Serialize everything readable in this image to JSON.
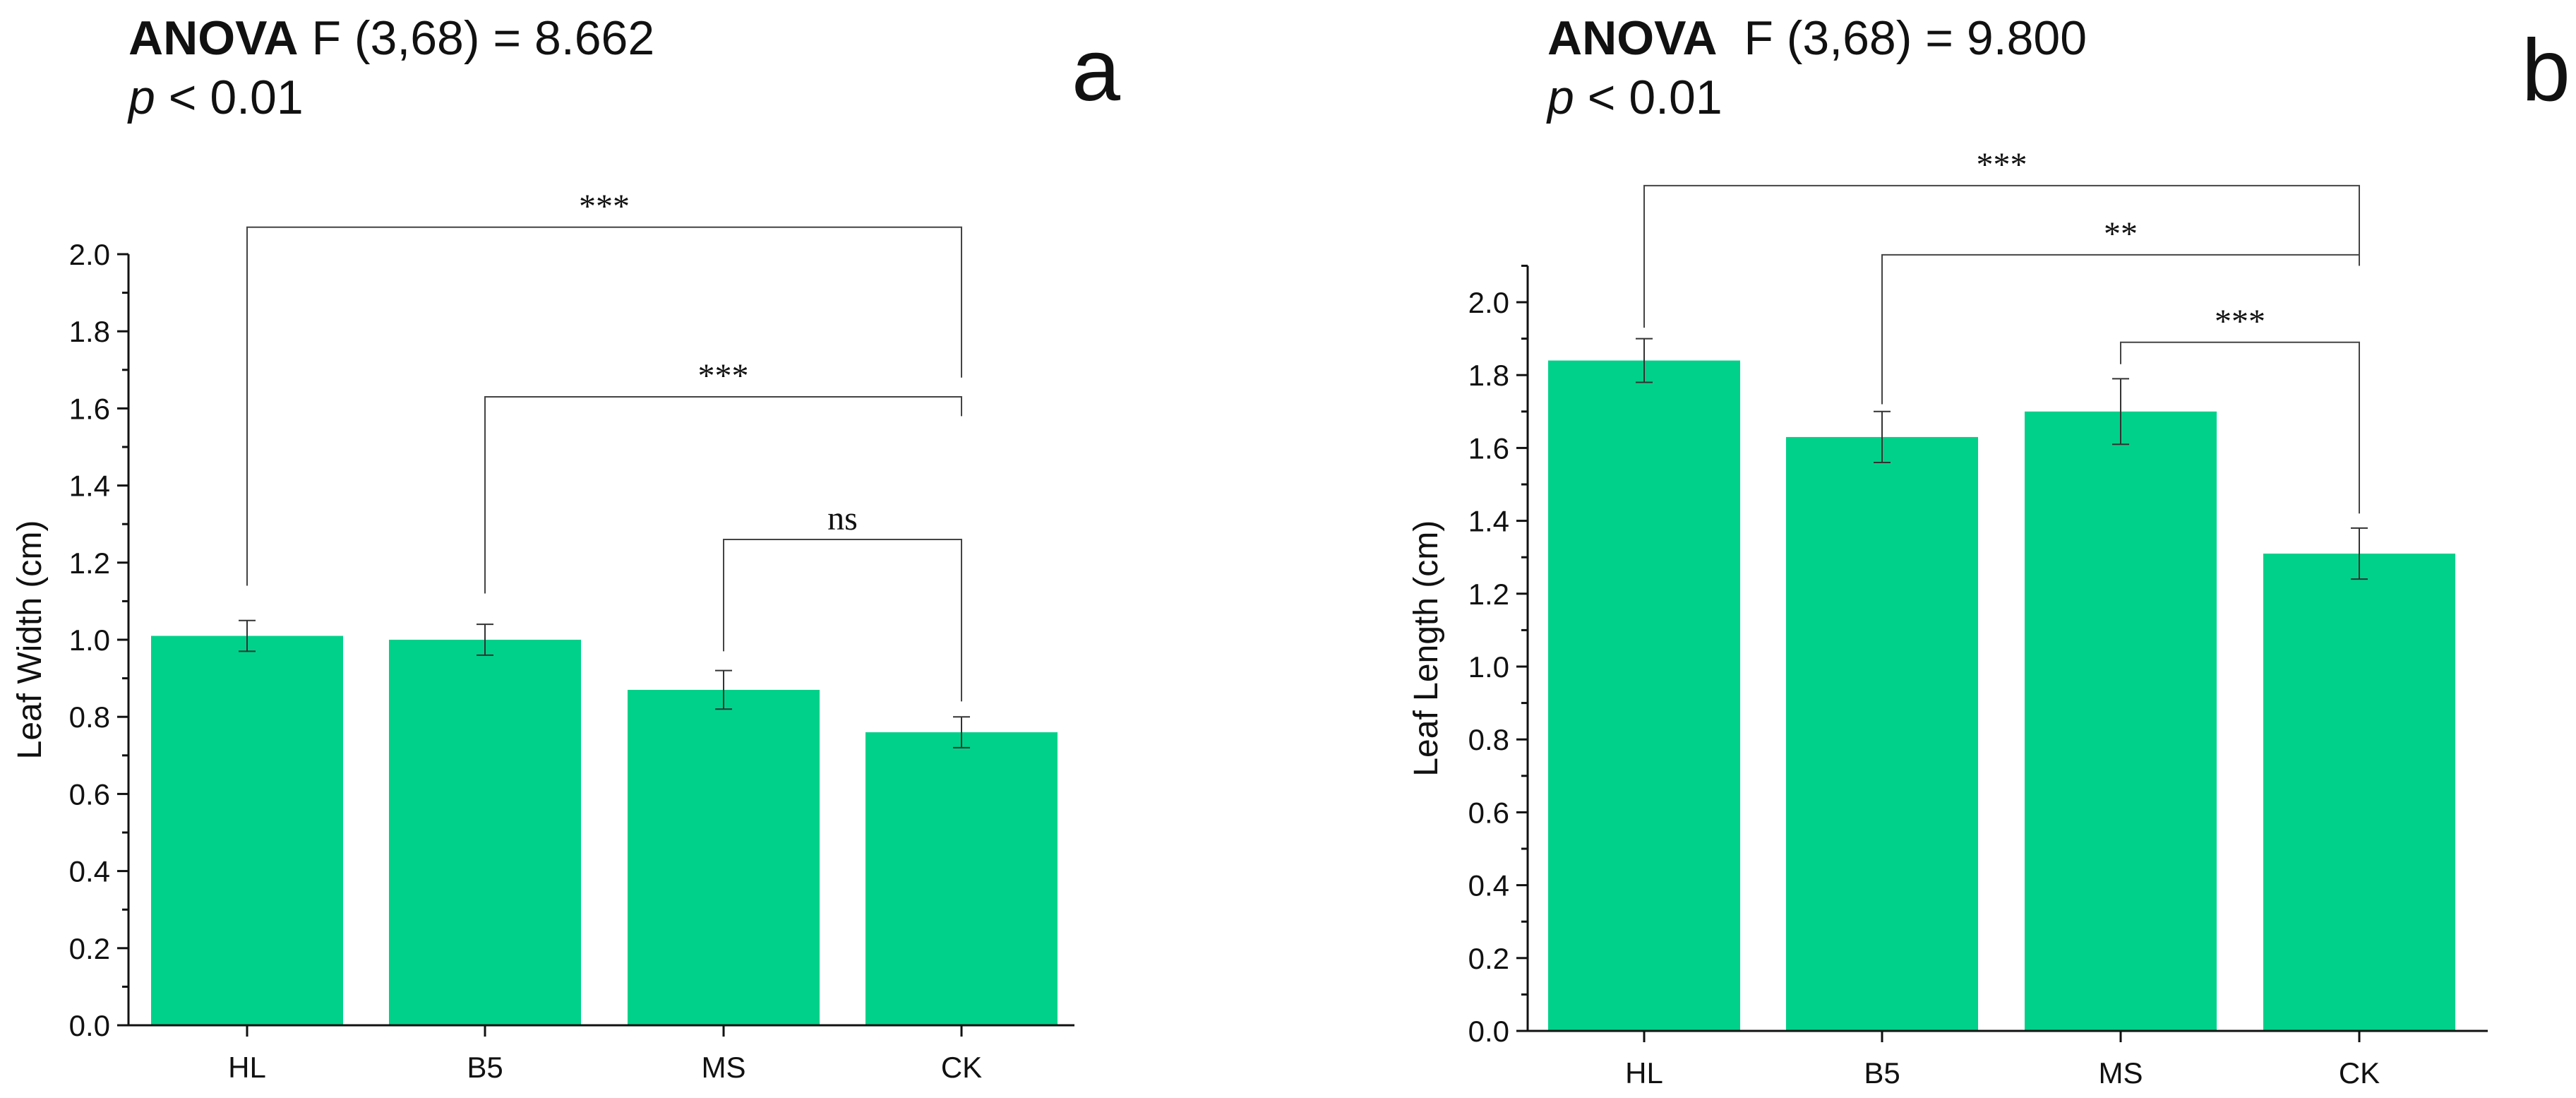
{
  "colors": {
    "bar": "#00d18a",
    "axis": "#111111",
    "bracket": "#444444"
  },
  "chart_data": [
    {
      "type": "bar",
      "panel_label": "a",
      "stats": {
        "test": "ANOVA",
        "statistic": "F (3,68) = 8.662",
        "p_label": "p",
        "p_value": "< 0.01"
      },
      "categories": [
        "HL",
        "B5",
        "MS",
        "CK"
      ],
      "values": [
        1.01,
        1.0,
        0.87,
        0.76
      ],
      "errors": [
        0.04,
        0.04,
        0.05,
        0.04
      ],
      "ylabel": "Leaf Width (cm)",
      "xlabel": "",
      "ylim": [
        0,
        2.0
      ],
      "yticks": [
        "0.0",
        "0.2",
        "0.4",
        "0.6",
        "0.8",
        "1.0",
        "1.2",
        "1.4",
        "1.6",
        "1.8",
        "2.0"
      ],
      "comparisons": [
        {
          "from": "HL",
          "to": "CK",
          "label": "***",
          "bracket_y": 2.07,
          "from_bottom": 1.14,
          "to_bottom": 1.68
        },
        {
          "from": "B5",
          "to": "CK",
          "label": "***",
          "bracket_y": 1.63,
          "from_bottom": 1.12,
          "to_bottom": 1.58
        },
        {
          "from": "MS",
          "to": "CK",
          "label": "ns",
          "bracket_y": 1.26,
          "from_bottom": 0.97,
          "to_bottom": 0.84
        }
      ]
    },
    {
      "type": "bar",
      "panel_label": "b",
      "stats": {
        "test": "ANOVA",
        "statistic": "F (3,68) = 9.800",
        "p_label": "p",
        "p_value": "< 0.01"
      },
      "categories": [
        "HL",
        "B5",
        "MS",
        "CK"
      ],
      "values": [
        1.84,
        1.63,
        1.7,
        1.31
      ],
      "errors": [
        0.06,
        0.07,
        0.09,
        0.07
      ],
      "ylabel": "Leaf Length (cm)",
      "xlabel": "",
      "ylim": [
        0,
        2.1
      ],
      "yticks": [
        "0.0",
        "0.2",
        "0.4",
        "0.6",
        "0.8",
        "1.0",
        "1.2",
        "1.4",
        "1.6",
        "1.8",
        "2.0"
      ],
      "comparisons": [
        {
          "from": "HL",
          "to": "CK",
          "label": "***",
          "bracket_y": 2.32,
          "from_bottom": 1.93,
          "to_bottom": 2.1
        },
        {
          "from": "B5",
          "to": "CK",
          "label": "**",
          "bracket_y": 2.13,
          "from_bottom": 1.72,
          "to_bottom": 2.1
        },
        {
          "from": "MS",
          "to": "CK",
          "label": "***",
          "bracket_y": 1.89,
          "from_bottom": 1.83,
          "to_bottom": 1.42
        }
      ]
    }
  ]
}
